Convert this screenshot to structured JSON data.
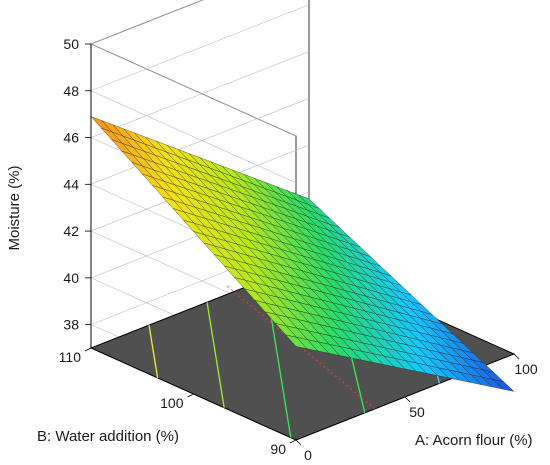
{
  "chart_data": {
    "type": "surface",
    "zlabel": "Moisture (%)",
    "xlabel": "A: Acorn flour (%)",
    "ylabel": "B: Water addition (%)",
    "x_ticks": [
      "0",
      "50",
      "100"
    ],
    "y_ticks": [
      "90",
      "100",
      "110"
    ],
    "z_ticks": [
      "38",
      "40",
      "42",
      "44",
      "46",
      "48",
      "50"
    ],
    "xlim": [
      0,
      100
    ],
    "ylim": [
      90,
      110
    ],
    "zlim": [
      37,
      50
    ],
    "surface_corners": [
      {
        "acorn_flour": 0,
        "water_addition": 110,
        "moisture": 46.9
      },
      {
        "acorn_flour": 100,
        "water_addition": 110,
        "moisture": 39.7
      },
      {
        "acorn_flour": 100,
        "water_addition": 90,
        "moisture": 35.4
      },
      {
        "acorn_flour": 0,
        "water_addition": 90,
        "moisture": 41.0
      }
    ],
    "grid_resolution": 20,
    "colormap": [
      "#1e4fdc",
      "#14c8ff",
      "#2adc66",
      "#b8e81c",
      "#f6e01a",
      "#f48a1a"
    ],
    "floor_color": "#505050",
    "contour_levels": [
      {
        "color": "#4ad4ff"
      },
      {
        "color": "#33ee55"
      },
      {
        "color": "#33ee55"
      },
      {
        "color": "#9bee2b"
      },
      {
        "color": "#eeee33"
      }
    ],
    "design_point_color": "#ff3333"
  }
}
